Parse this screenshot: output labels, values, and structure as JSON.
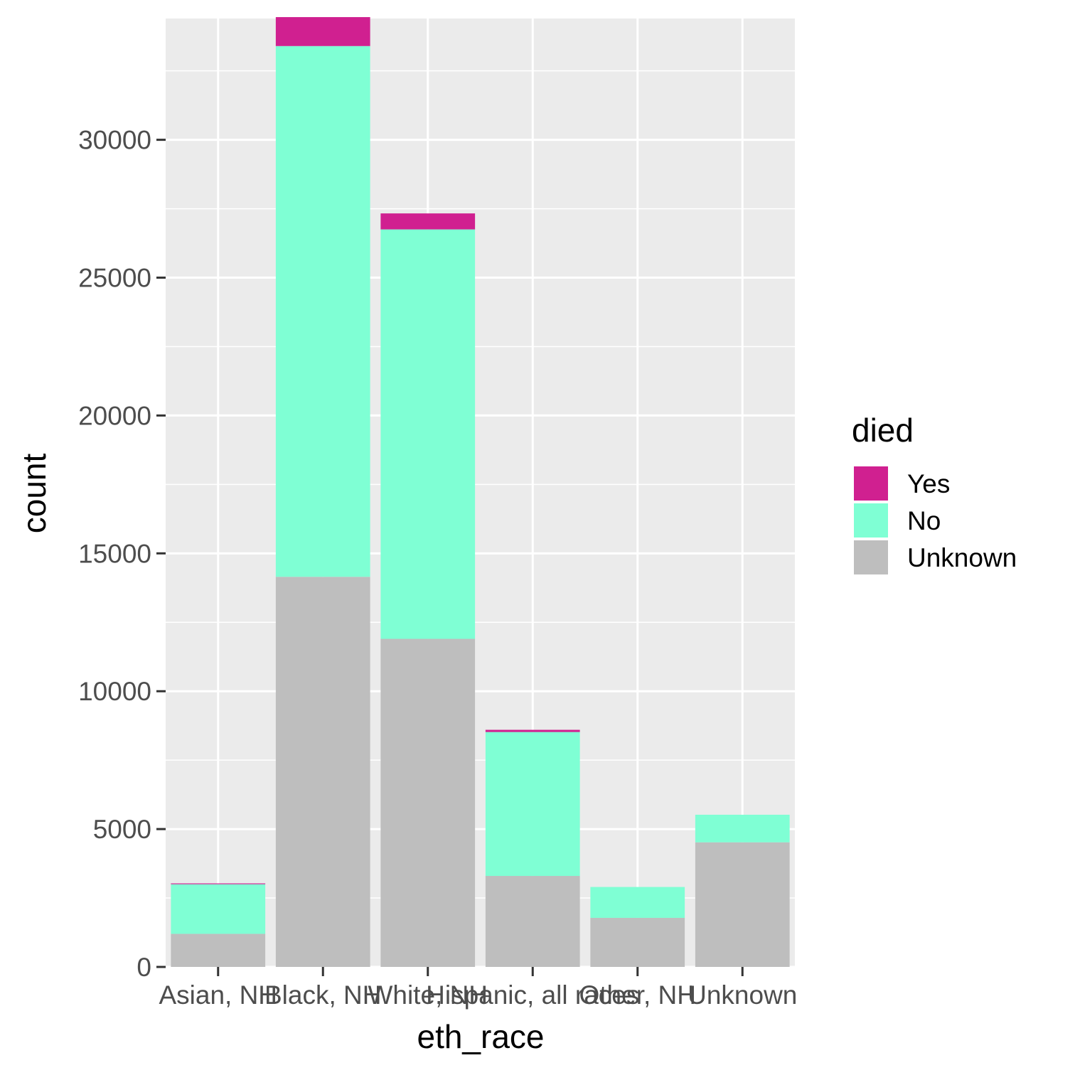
{
  "chart_data": {
    "type": "bar",
    "stacked": true,
    "xlabel": "eth_race",
    "ylabel": "count",
    "ylim": [
      0,
      34400
    ],
    "yticks": [
      0,
      5000,
      10000,
      15000,
      20000,
      25000,
      30000
    ],
    "ytick_labels": [
      "0",
      "5000",
      "10000",
      "15000",
      "20000",
      "25000",
      "30000"
    ],
    "categories": [
      "Asian, NH",
      "Black, NH",
      "White, NH",
      "Hispanic, all races",
      "Other, NH",
      "Unknown"
    ],
    "legend_title": "died",
    "legend_position": "right",
    "grid": true,
    "series": [
      {
        "name": "Unknown",
        "color": "#bebebe",
        "values": [
          1200,
          14150,
          11900,
          3300,
          1780,
          4520
        ]
      },
      {
        "name": "No",
        "color": "#7fffd4",
        "values": [
          1800,
          19250,
          14850,
          5220,
          1120,
          1000
        ]
      },
      {
        "name": "Yes",
        "color": "#d02090",
        "values": [
          30,
          1050,
          580,
          80,
          0,
          0
        ]
      }
    ],
    "legend_order": [
      "Yes",
      "No",
      "Unknown"
    ],
    "panel_background": "#ebebeb"
  }
}
